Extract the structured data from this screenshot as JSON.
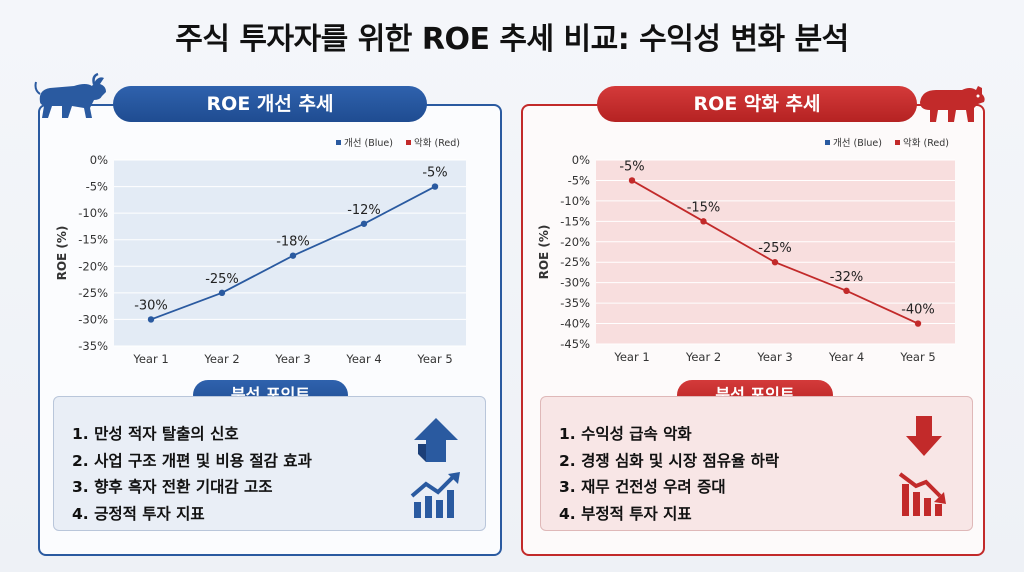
{
  "title": "주식 투자자를 위한 ROE 추세 비교: 수익성 변화 분석",
  "colors": {
    "blue": "#2a5aa0",
    "red": "#c22a2a"
  },
  "left_panel": {
    "heading": "ROE 개선 추세",
    "mascot_icon": "bull-icon",
    "points_title": "분석 포인트",
    "points": [
      "1. 만성 적자 탈출의 신호",
      "2. 사업 구조 개편 및 비용 절감 효과",
      "3. 향후 흑자 전환 기대감 고조",
      "4. 긍정적 투자 지표"
    ],
    "point_icons": [
      "up-arrow-icon",
      "rising-chart-icon"
    ]
  },
  "right_panel": {
    "heading": "ROE 악화 추세",
    "mascot_icon": "bear-icon",
    "points_title": "분석 포인트",
    "points": [
      "1. 수익성 급속 악화",
      "2. 경쟁 심화 및 시장 점유율 하락",
      "3. 재무 건전성 우려 증대",
      "4. 부정적 투자 지표"
    ],
    "point_icons": [
      "down-arrow-icon",
      "falling-chart-icon"
    ]
  },
  "chart_data": [
    {
      "type": "line",
      "categories": [
        "Year 1",
        "Year 2",
        "Year 3",
        "Year 4",
        "Year 5"
      ],
      "series": [
        {
          "name": "개선 (Blue)",
          "values": [
            -30,
            -25,
            -18,
            -12,
            -5
          ],
          "color": "#2a5aa0"
        }
      ],
      "data_labels": [
        "-30%",
        "-25%",
        "-18%",
        "-12%",
        "-5%"
      ],
      "ylabel": "ROE (%)",
      "ylim": [
        -35,
        0
      ],
      "yticks": [
        0,
        -5,
        -10,
        -15,
        -20,
        -25,
        -30,
        -35
      ],
      "ytick_labels": [
        "0%",
        "-5%",
        "-10%",
        "-15%",
        "-20%",
        "-25%",
        "-30%",
        "-35%"
      ],
      "legend": [
        {
          "label": "개선 (Blue)",
          "color": "#2a5aa0"
        },
        {
          "label": "악화 (Red)",
          "color": "#c22a2a"
        }
      ],
      "legend_position": "top-right",
      "background": "#e3ebf5"
    },
    {
      "type": "line",
      "categories": [
        "Year 1",
        "Year 2",
        "Year 3",
        "Year 4",
        "Year 5"
      ],
      "series": [
        {
          "name": "악화 (Red)",
          "values": [
            -5,
            -15,
            -25,
            -32,
            -40
          ],
          "color": "#c22a2a"
        }
      ],
      "data_labels": [
        "-5%",
        "-15%",
        "-25%",
        "-32%",
        "-40%"
      ],
      "ylabel": "ROE (%)",
      "ylim": [
        -45,
        0
      ],
      "yticks": [
        0,
        -5,
        -10,
        -15,
        -20,
        -25,
        -30,
        -35,
        -40,
        -45
      ],
      "ytick_labels": [
        "0%",
        "-5%",
        "-10%",
        "-15%",
        "-20%",
        "-25%",
        "-30%",
        "-35%",
        "-40%",
        "-45%"
      ],
      "legend": [
        {
          "label": "개선 (Blue)",
          "color": "#2a5aa0"
        },
        {
          "label": "악화 (Red)",
          "color": "#c22a2a"
        }
      ],
      "legend_position": "top-right",
      "background": "#f8dede"
    }
  ]
}
